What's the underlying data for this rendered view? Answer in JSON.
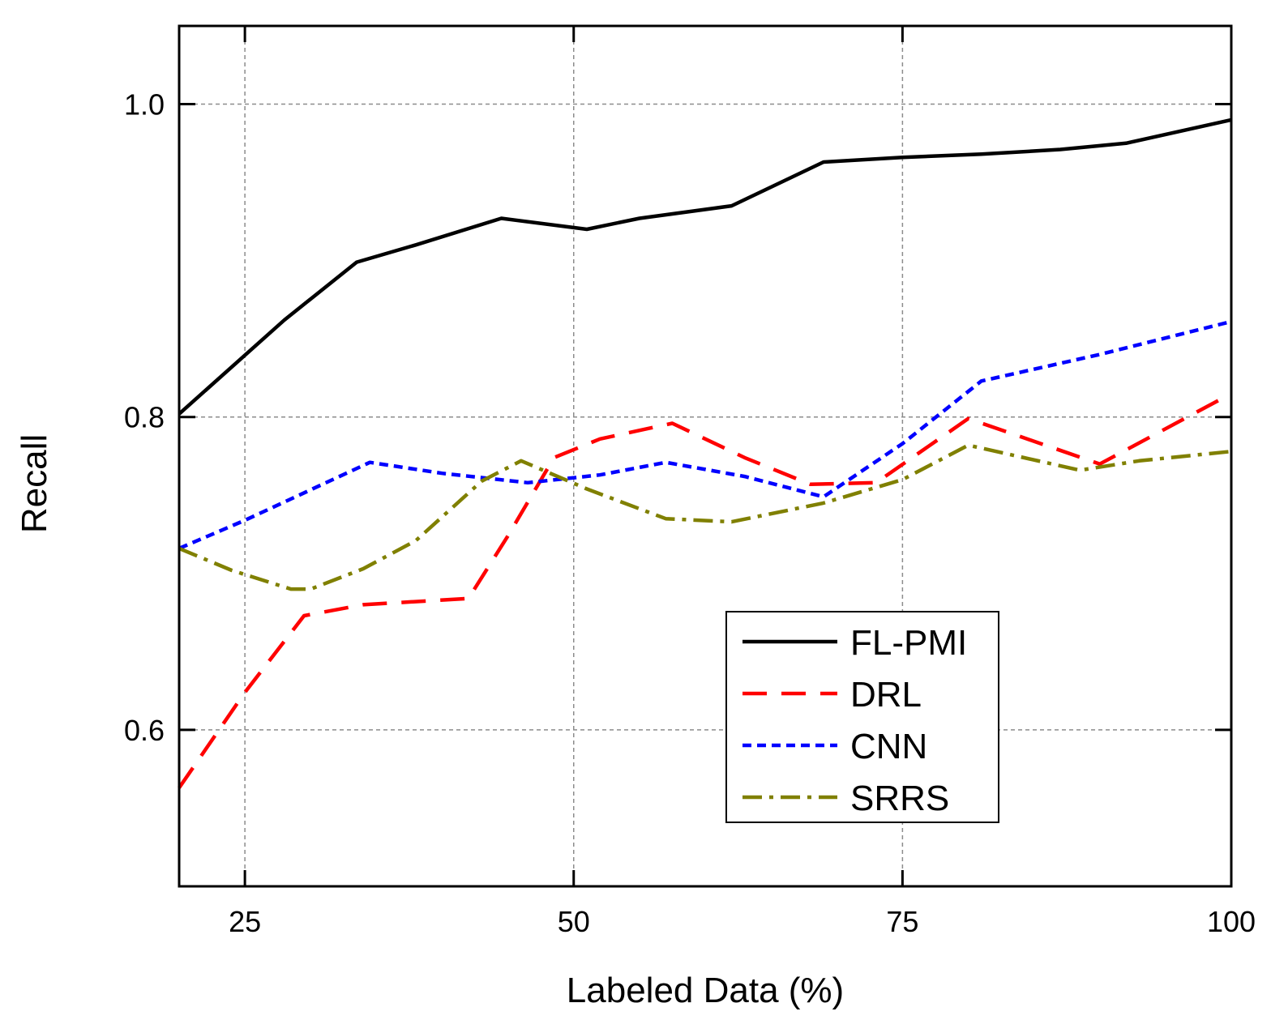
{
  "chart_data": {
    "type": "line",
    "xlabel": "Labeled Data (%)",
    "ylabel": "Recall",
    "xlim": [
      20,
      100
    ],
    "ylim": [
      0.5,
      1.05
    ],
    "xticks": [
      25,
      50,
      75,
      100
    ],
    "xtick_labels": [
      "25",
      "50",
      "75",
      "100"
    ],
    "yticks": [
      0.6,
      0.8,
      1.0
    ],
    "ytick_labels": [
      "0.6",
      "0.8",
      "1.0"
    ],
    "grid": true,
    "legend_position": "bottom-right",
    "series": [
      {
        "name": "FL-PMI",
        "color": "#000000",
        "dash": "solid",
        "x": [
          20,
          28,
          33.5,
          38,
          44.5,
          51,
          55,
          62,
          69,
          75,
          81,
          87,
          92,
          100
        ],
        "y": [
          0.802,
          0.862,
          0.899,
          0.91,
          0.927,
          0.92,
          0.927,
          0.935,
          0.963,
          0.966,
          0.968,
          0.971,
          0.975,
          0.99
        ]
      },
      {
        "name": "DRL",
        "color": "#ff0000",
        "dash": "long-dash",
        "x": [
          20,
          25,
          29.5,
          34,
          42,
          45,
          48.5,
          52,
          57.5,
          63,
          68,
          73,
          80,
          90,
          100
        ],
        "y": [
          0.563,
          0.624,
          0.673,
          0.68,
          0.684,
          0.724,
          0.774,
          0.786,
          0.796,
          0.774,
          0.757,
          0.758,
          0.799,
          0.77,
          0.815
        ]
      },
      {
        "name": "CNN",
        "color": "#0000ff",
        "dash": "short-dash",
        "x": [
          20,
          25,
          34.5,
          40,
          46.5,
          52,
          57,
          63,
          69,
          75,
          81,
          90,
          100
        ],
        "y": [
          0.716,
          0.734,
          0.771,
          0.764,
          0.758,
          0.763,
          0.771,
          0.762,
          0.749,
          0.783,
          0.823,
          0.84,
          0.861
        ]
      },
      {
        "name": "SRRS",
        "color": "#808000",
        "dash": "dash-dot",
        "x": [
          20,
          24,
          28.5,
          30,
          34,
          38,
          43,
          46,
          51,
          57,
          62,
          69,
          75,
          80,
          88.5,
          93,
          100
        ],
        "y": [
          0.716,
          0.702,
          0.69,
          0.69,
          0.703,
          0.721,
          0.759,
          0.772,
          0.754,
          0.735,
          0.733,
          0.745,
          0.76,
          0.782,
          0.766,
          0.772,
          0.778
        ]
      }
    ]
  }
}
